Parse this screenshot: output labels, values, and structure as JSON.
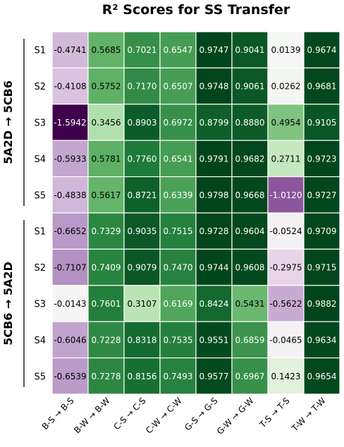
{
  "chart_data": {
    "type": "heatmap",
    "title": "R² Scores for SS Transfer",
    "colormap": "PRGn (diverging, purple = negative, green = positive)",
    "columns": [
      "B-S → B-S",
      "B-W → B-W",
      "C-S → C-S",
      "C-W → C-W",
      "G-S → G-S",
      "G-W → G-W",
      "T-S → T-S",
      "T-W → T-W"
    ],
    "groups": [
      {
        "label": "5A2D → 5CB6",
        "rows": [
          "S1",
          "S2",
          "S3",
          "S4",
          "S5"
        ],
        "values": [
          [
            -0.4741,
            0.5685,
            0.7021,
            0.6547,
            0.9747,
            0.9041,
            0.0139,
            0.9674
          ],
          [
            -0.4108,
            0.5752,
            0.717,
            0.6507,
            0.9748,
            0.9061,
            0.0262,
            0.9681
          ],
          [
            -1.5942,
            0.3456,
            0.8903,
            0.6972,
            0.8799,
            0.888,
            0.4954,
            0.9105
          ],
          [
            -0.5933,
            0.5781,
            0.776,
            0.6541,
            0.9791,
            0.9682,
            0.2711,
            0.9723
          ],
          [
            -0.4838,
            0.5617,
            0.8721,
            0.6339,
            0.9798,
            0.9668,
            -1.012,
            0.9727
          ]
        ]
      },
      {
        "label": "5CB6 → 5A2D",
        "rows": [
          "S1",
          "S2",
          "S3",
          "S4",
          "S5"
        ],
        "values": [
          [
            -0.6652,
            0.7329,
            0.9035,
            0.7515,
            0.9728,
            0.9604,
            -0.0524,
            0.9709
          ],
          [
            -0.7107,
            0.7409,
            0.9079,
            0.747,
            0.9744,
            0.9608,
            -0.2975,
            0.9715
          ],
          [
            -0.0143,
            0.7601,
            0.3107,
            0.6169,
            0.8424,
            0.5431,
            -0.5622,
            0.9882
          ],
          [
            -0.6046,
            0.7228,
            0.8318,
            0.7535,
            0.9551,
            0.6859,
            -0.0465,
            0.9634
          ],
          [
            -0.6539,
            0.7278,
            0.8156,
            0.7493,
            0.9577,
            0.6967,
            0.1423,
            0.9654
          ]
        ]
      }
    ],
    "value_format": "4 decimals",
    "grid": "white cell borders",
    "legend": "none"
  }
}
